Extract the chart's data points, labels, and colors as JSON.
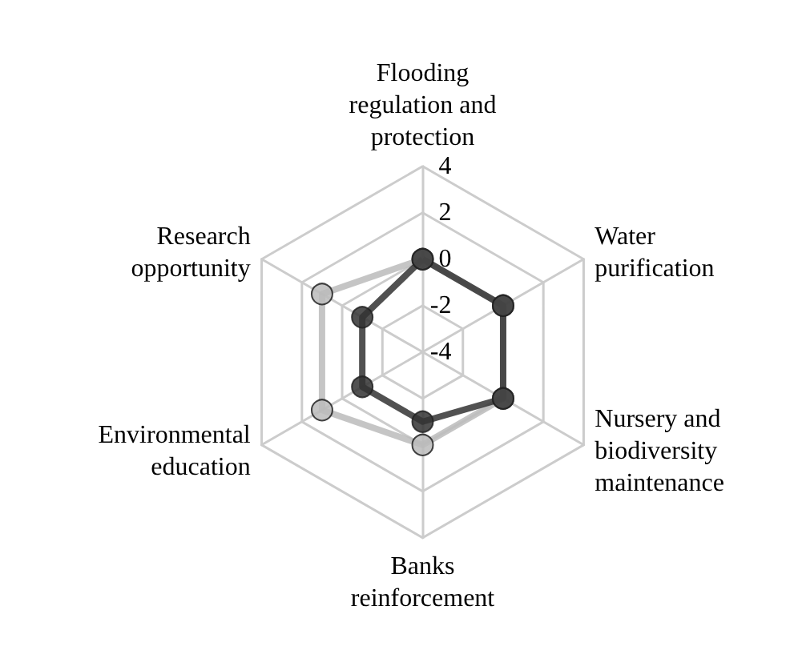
{
  "chart_data": {
    "type": "radar",
    "categories": [
      "Flooding regulation and protection",
      "Water purification",
      "Nursery and biodiversity maintenance",
      "Banks reinforcement",
      "Environmental education",
      "Research opportunity"
    ],
    "series": [
      {
        "color": "#bbbbbb",
        "values": [
          0,
          0,
          0,
          0,
          1,
          1
        ]
      },
      {
        "color": "#333333",
        "values": [
          0,
          0,
          0,
          -1,
          -1,
          -1
        ]
      }
    ],
    "ylim": [
      -4,
      4
    ],
    "yticks": [
      -4,
      -2,
      0,
      2,
      4
    ],
    "grid": true,
    "marker": "circle",
    "line_style": "solid"
  }
}
